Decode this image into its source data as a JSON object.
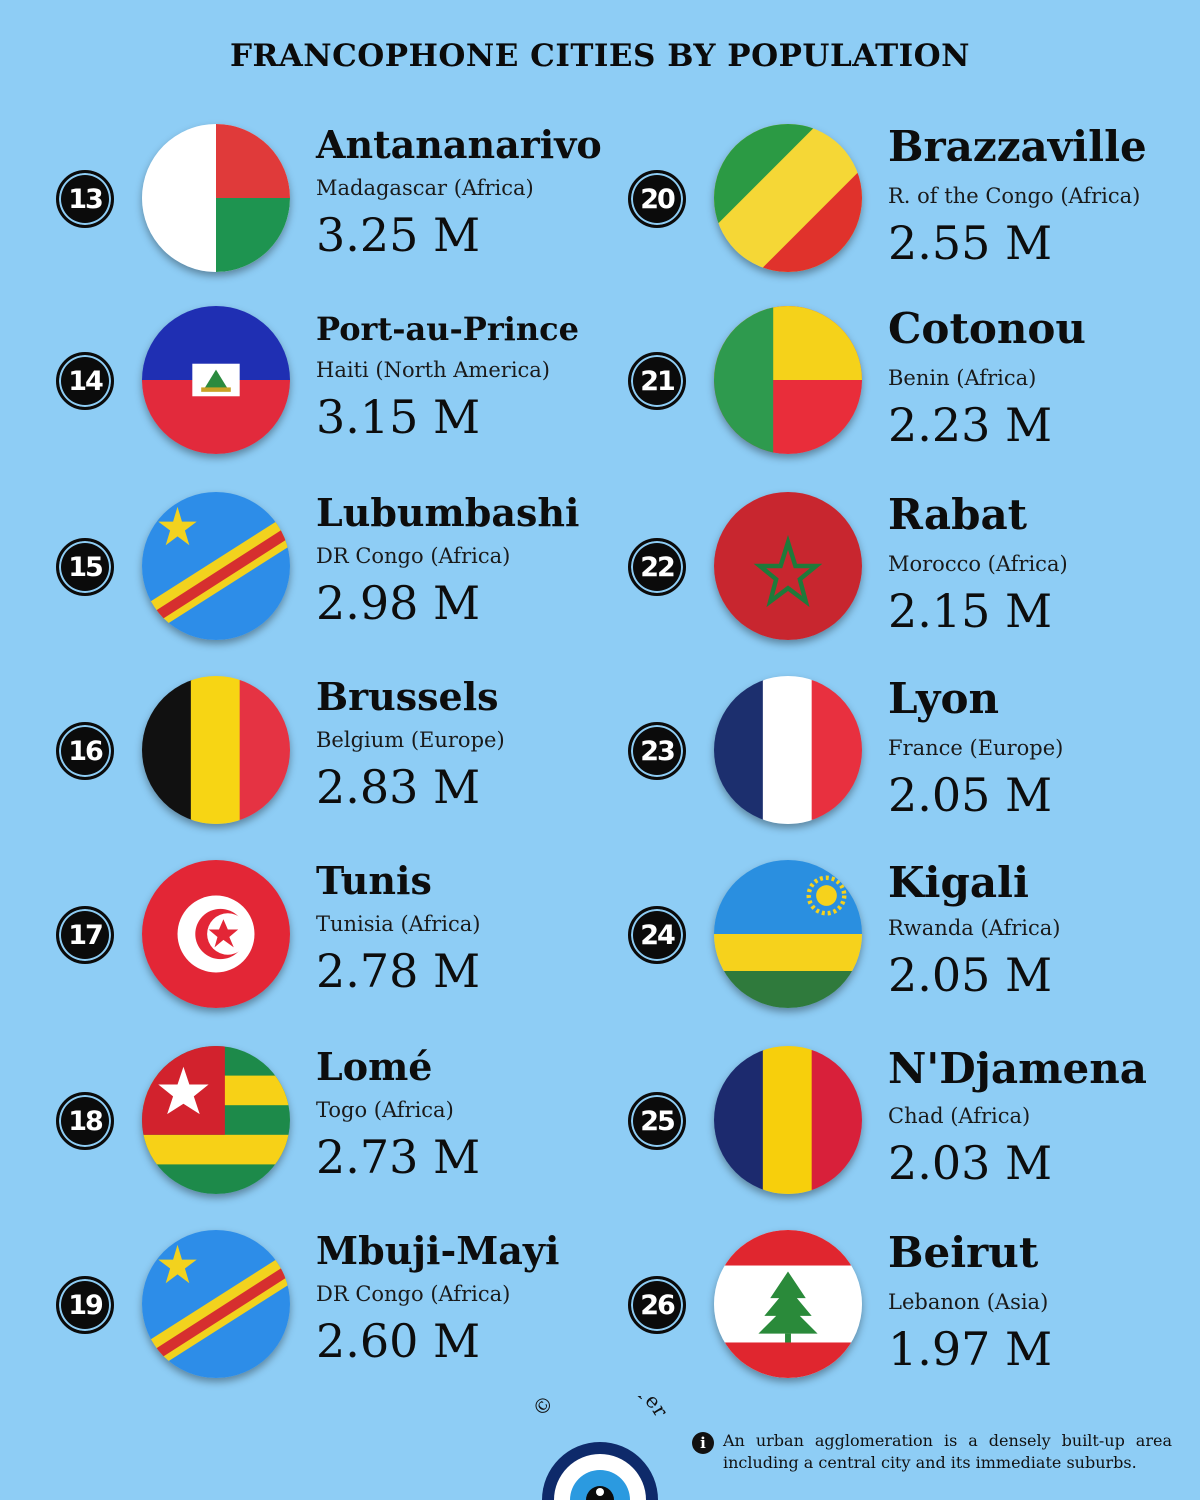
{
  "header": {
    "title": "FRANCOPHONE CITIES BY POPULATION"
  },
  "cities": [
    {
      "rank": "13",
      "city": "Antananarivo",
      "country": "Madagascar (Africa)",
      "population": "3.25 M",
      "flag": "madagascar-flag-icon"
    },
    {
      "rank": "14",
      "city": "Port-au-Prince",
      "country": "Haiti (North America)",
      "population": "3.15 M",
      "flag": "haiti-flag-icon"
    },
    {
      "rank": "15",
      "city": "Lubumbashi",
      "country": "DR Congo (Africa)",
      "population": "2.98 M",
      "flag": "dr-congo-flag-icon"
    },
    {
      "rank": "16",
      "city": "Brussels",
      "country": "Belgium (Europe)",
      "population": "2.83 M",
      "flag": "belgium-flag-icon"
    },
    {
      "rank": "17",
      "city": "Tunis",
      "country": "Tunisia (Africa)",
      "population": "2.78 M",
      "flag": "tunisia-flag-icon"
    },
    {
      "rank": "18",
      "city": "Lomé",
      "country": "Togo (Africa)",
      "population": "2.73 M",
      "flag": "togo-flag-icon"
    },
    {
      "rank": "19",
      "city": "Mbuji-Mayi",
      "country": "DR Congo (Africa)",
      "population": "2.60 M",
      "flag": "dr-congo-flag-icon"
    },
    {
      "rank": "20",
      "city": "Brazzaville",
      "country": "R. of the Congo (Africa)",
      "population": "2.55 M",
      "flag": "congo-flag-icon"
    },
    {
      "rank": "21",
      "city": "Cotonou",
      "country": "Benin (Africa)",
      "population": "2.23 M",
      "flag": "benin-flag-icon"
    },
    {
      "rank": "22",
      "city": "Rabat",
      "country": "Morocco (Africa)",
      "population": "2.15 M",
      "flag": "morocco-flag-icon"
    },
    {
      "rank": "23",
      "city": "Lyon",
      "country": "France (Europe)",
      "population": "2.05 M",
      "flag": "france-flag-icon"
    },
    {
      "rank": "24",
      "city": "Kigali",
      "country": "Rwanda (Africa)",
      "population": "2.05 M",
      "flag": "rwanda-flag-icon"
    },
    {
      "rank": "25",
      "city": "N'Djamena",
      "country": "Chad (Africa)",
      "population": "2.03 M",
      "flag": "chad-flag-icon"
    },
    {
      "rank": "26",
      "city": "Beirut",
      "country": "Lebanon (Asia)",
      "population": "1.97 M",
      "flag": "lebanon-flag-icon"
    }
  ],
  "footer": {
    "brand": "© Civixplorer",
    "info_icon": "i",
    "note": "An urban agglomeration is a densely built-up area including a central city and its immediate suburbs."
  },
  "colors": {
    "background": "#8ecdf5",
    "text": "#111111"
  }
}
